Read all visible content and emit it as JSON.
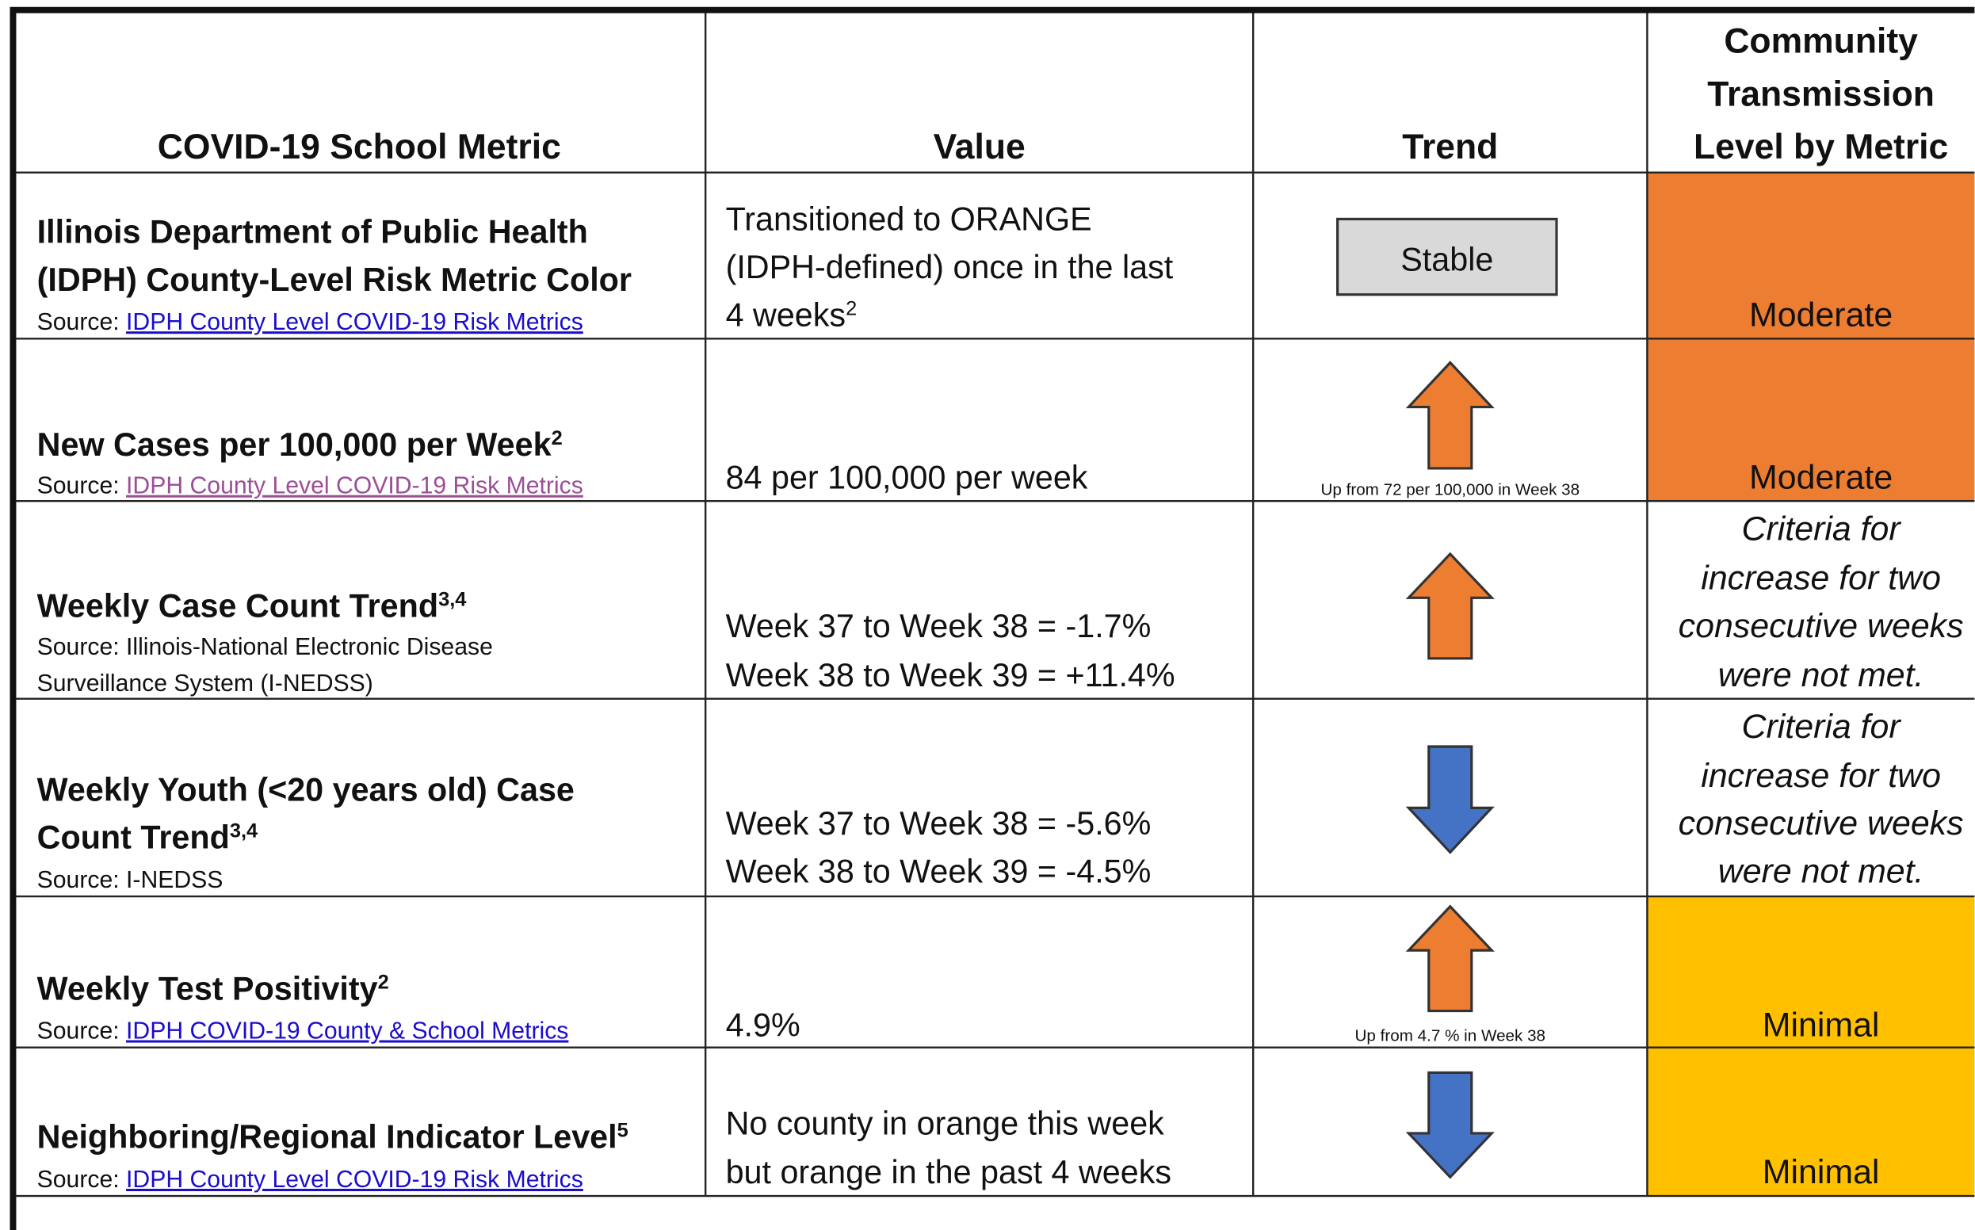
{
  "table": {
    "header": {
      "metric": "COVID-19 School Metric",
      "value": "Value",
      "trend": "Trend",
      "level": [
        "Community",
        "Transmission",
        "Level by Metric"
      ]
    },
    "rows": [
      {
        "metric": [
          "Illinois Department of Public Health",
          "(IDPH) County-Level Risk Metric Color"
        ],
        "source": "Source:",
        "source_link": "IDPH County Level COVID-19 Risk Metrics",
        "value": [
          "Transitioned to ORANGE",
          "(IDPH-defined) once in the last",
          "4 weeks"
        ],
        "value_sup": "2",
        "trend": "Stable",
        "level": [
          "Moderate"
        ],
        "color": "#ED7D31"
      },
      {
        "metric": [
          "New Cases per 100,000 per Week"
        ],
        "metric_sup": "2",
        "source": "Source:",
        "source_link": "IDPH County Level COVID-19 Risk Metrics",
        "link_visited": true,
        "value": [
          "84 per 100,000 per week"
        ],
        "direction": "up",
        "trend_note": "Up from 72 per 100,000 in Week 38",
        "level": [
          "Moderate"
        ],
        "color": "#ED7D31"
      },
      {
        "metric": [
          "Weekly Case Count Trend"
        ],
        "metric_sup": "3,4",
        "source_lines": [
          "Source: Illinois-National Electronic Disease",
          "Surveillance System (I-NEDSS)"
        ],
        "value": [
          "Week 37 to Week 38 = -1.7%",
          "Week 38 to Week 39 = +11.4%"
        ],
        "direction": "up",
        "level": [
          "Criteria for",
          "increase for two",
          "consecutive weeks",
          "were not met."
        ],
        "italic": true
      },
      {
        "metric": [
          "Weekly Youth (<20 years old) Case",
          "Count Trend"
        ],
        "metric_sup": "3,4",
        "source_lines": [
          "Source: I-NEDSS"
        ],
        "value": [
          "Week 37 to Week 38 = -5.6%",
          "Week 38 to Week 39 = -4.5%"
        ],
        "direction": "down",
        "level": [
          "Criteria for",
          "increase for two",
          "consecutive weeks",
          "were not met."
        ],
        "italic": true
      },
      {
        "metric": [
          "Weekly Test Positivity"
        ],
        "metric_sup": "2",
        "source": "Source:",
        "source_link": "IDPH COVID-19 County & School Metrics",
        "value": [
          "4.9%"
        ],
        "direction": "up",
        "trend_note": "Up from 4.7 % in Week 38",
        "level": [
          "Minimal"
        ],
        "color": "#FFC000"
      },
      {
        "metric": [
          "Neighboring/Regional Indicator Level"
        ],
        "metric_sup": "5",
        "source": "Source:",
        "source_link": "IDPH County Level COVID-19 Risk Metrics",
        "value": [
          "No county in orange this week",
          "but orange in the past 4 weeks"
        ],
        "direction": "down",
        "level": [
          "Minimal"
        ],
        "color": "#FFC000"
      }
    ]
  }
}
